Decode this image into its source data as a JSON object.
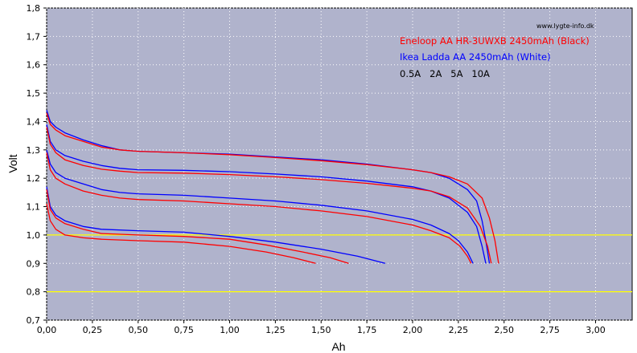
{
  "chart_data": {
    "type": "line",
    "watermark": "www.lygte-info.dk",
    "xlabel": "Ah",
    "ylabel": "Volt",
    "xlim": [
      0,
      3.2
    ],
    "ylim": [
      0.7,
      1.8
    ],
    "x_ticks": [
      "0,00",
      "0,25",
      "0,50",
      "0,75",
      "1,00",
      "1,25",
      "1,50",
      "1,75",
      "2,00",
      "2,25",
      "2,50",
      "2,75",
      "3,00"
    ],
    "y_ticks": [
      "0,7",
      "0,8",
      "0,9",
      "1,0",
      "1,1",
      "1,2",
      "1,3",
      "1,4",
      "1,5",
      "1,6",
      "1,7",
      "1,8"
    ],
    "reference_lines": [
      1.0,
      0.8
    ],
    "colors": {
      "background": "#b0b3cc",
      "grid": "#ffffff",
      "reference": "#ffff00",
      "eneloop": "#ff0000",
      "ikea": "#0000ff",
      "currents_text": "#000000"
    },
    "legend": {
      "placement": "top-right",
      "entries": [
        {
          "text": "Eneloop AA HR-3UWXB 2450mAh (Black)",
          "color": "#ff0000"
        },
        {
          "text": "Ikea Ladda AA 2450mAh (White)",
          "color": "#0000ff"
        },
        {
          "text": "0.5A   2A   5A   10A",
          "color": "#000000"
        }
      ]
    },
    "series": [
      {
        "brand": "Ikea Ladda",
        "color": "#0000ff",
        "current": "0.5A",
        "points": [
          [
            0,
            1.44
          ],
          [
            0.02,
            1.4
          ],
          [
            0.05,
            1.38
          ],
          [
            0.1,
            1.36
          ],
          [
            0.2,
            1.335
          ],
          [
            0.3,
            1.315
          ],
          [
            0.4,
            1.3
          ],
          [
            0.5,
            1.295
          ],
          [
            0.75,
            1.29
          ],
          [
            1.0,
            1.285
          ],
          [
            1.25,
            1.275
          ],
          [
            1.5,
            1.265
          ],
          [
            1.75,
            1.25
          ],
          [
            2.0,
            1.23
          ],
          [
            2.1,
            1.22
          ],
          [
            2.2,
            1.2
          ],
          [
            2.3,
            1.16
          ],
          [
            2.35,
            1.12
          ],
          [
            2.38,
            1.05
          ],
          [
            2.4,
            0.98
          ],
          [
            2.42,
            0.9
          ]
        ]
      },
      {
        "brand": "Eneloop",
        "color": "#ff0000",
        "current": "0.5A",
        "points": [
          [
            0,
            1.43
          ],
          [
            0.02,
            1.39
          ],
          [
            0.05,
            1.37
          ],
          [
            0.1,
            1.35
          ],
          [
            0.2,
            1.33
          ],
          [
            0.3,
            1.31
          ],
          [
            0.4,
            1.3
          ],
          [
            0.5,
            1.295
          ],
          [
            0.75,
            1.29
          ],
          [
            1.0,
            1.283
          ],
          [
            1.25,
            1.273
          ],
          [
            1.5,
            1.262
          ],
          [
            1.75,
            1.248
          ],
          [
            2.0,
            1.23
          ],
          [
            2.1,
            1.22
          ],
          [
            2.2,
            1.205
          ],
          [
            2.3,
            1.18
          ],
          [
            2.38,
            1.13
          ],
          [
            2.42,
            1.06
          ],
          [
            2.45,
            0.98
          ],
          [
            2.47,
            0.9
          ]
        ]
      },
      {
        "brand": "Ikea Ladda",
        "color": "#0000ff",
        "current": "2A",
        "points": [
          [
            0,
            1.39
          ],
          [
            0.02,
            1.33
          ],
          [
            0.05,
            1.3
          ],
          [
            0.1,
            1.28
          ],
          [
            0.2,
            1.26
          ],
          [
            0.3,
            1.245
          ],
          [
            0.4,
            1.235
          ],
          [
            0.5,
            1.23
          ],
          [
            0.75,
            1.228
          ],
          [
            1.0,
            1.223
          ],
          [
            1.25,
            1.215
          ],
          [
            1.5,
            1.205
          ],
          [
            1.75,
            1.19
          ],
          [
            2.0,
            1.17
          ],
          [
            2.1,
            1.155
          ],
          [
            2.2,
            1.13
          ],
          [
            2.3,
            1.08
          ],
          [
            2.35,
            1.03
          ],
          [
            2.38,
            0.96
          ],
          [
            2.4,
            0.9
          ]
        ]
      },
      {
        "brand": "Eneloop",
        "color": "#ff0000",
        "current": "2A",
        "points": [
          [
            0,
            1.38
          ],
          [
            0.02,
            1.32
          ],
          [
            0.05,
            1.29
          ],
          [
            0.1,
            1.265
          ],
          [
            0.2,
            1.245
          ],
          [
            0.3,
            1.232
          ],
          [
            0.4,
            1.225
          ],
          [
            0.5,
            1.22
          ],
          [
            0.75,
            1.218
          ],
          [
            1.0,
            1.213
          ],
          [
            1.25,
            1.205
          ],
          [
            1.5,
            1.195
          ],
          [
            1.75,
            1.182
          ],
          [
            2.0,
            1.165
          ],
          [
            2.1,
            1.155
          ],
          [
            2.2,
            1.135
          ],
          [
            2.3,
            1.095
          ],
          [
            2.37,
            1.03
          ],
          [
            2.41,
            0.96
          ],
          [
            2.43,
            0.9
          ]
        ]
      },
      {
        "brand": "Ikea Ladda",
        "color": "#0000ff",
        "current": "5A",
        "points": [
          [
            0,
            1.3
          ],
          [
            0.02,
            1.25
          ],
          [
            0.05,
            1.22
          ],
          [
            0.1,
            1.2
          ],
          [
            0.2,
            1.18
          ],
          [
            0.3,
            1.16
          ],
          [
            0.4,
            1.15
          ],
          [
            0.5,
            1.145
          ],
          [
            0.75,
            1.14
          ],
          [
            1.0,
            1.13
          ],
          [
            1.25,
            1.12
          ],
          [
            1.5,
            1.105
          ],
          [
            1.75,
            1.085
          ],
          [
            2.0,
            1.055
          ],
          [
            2.1,
            1.035
          ],
          [
            2.2,
            1.005
          ],
          [
            2.25,
            0.98
          ],
          [
            2.3,
            0.94
          ],
          [
            2.33,
            0.9
          ]
        ]
      },
      {
        "brand": "Eneloop",
        "color": "#ff0000",
        "current": "5A",
        "points": [
          [
            0,
            1.29
          ],
          [
            0.02,
            1.23
          ],
          [
            0.05,
            1.2
          ],
          [
            0.1,
            1.18
          ],
          [
            0.2,
            1.155
          ],
          [
            0.3,
            1.14
          ],
          [
            0.4,
            1.13
          ],
          [
            0.5,
            1.125
          ],
          [
            0.75,
            1.12
          ],
          [
            1.0,
            1.11
          ],
          [
            1.25,
            1.1
          ],
          [
            1.5,
            1.085
          ],
          [
            1.75,
            1.065
          ],
          [
            2.0,
            1.035
          ],
          [
            2.1,
            1.015
          ],
          [
            2.2,
            0.99
          ],
          [
            2.26,
            0.96
          ],
          [
            2.3,
            0.925
          ],
          [
            2.32,
            0.9
          ]
        ]
      },
      {
        "brand": "Ikea Ladda",
        "color": "#0000ff",
        "current": "10A",
        "points": [
          [
            0,
            1.17
          ],
          [
            0.02,
            1.1
          ],
          [
            0.05,
            1.07
          ],
          [
            0.1,
            1.05
          ],
          [
            0.2,
            1.03
          ],
          [
            0.3,
            1.02
          ],
          [
            0.5,
            1.015
          ],
          [
            0.75,
            1.01
          ],
          [
            1.0,
            0.995
          ],
          [
            1.25,
            0.975
          ],
          [
            1.5,
            0.95
          ],
          [
            1.7,
            0.925
          ],
          [
            1.85,
            0.9
          ]
        ]
      },
      {
        "brand": "Eneloop",
        "color": "#ff0000",
        "current": "10A",
        "points": [
          [
            0,
            1.16
          ],
          [
            0.02,
            1.09
          ],
          [
            0.05,
            1.06
          ],
          [
            0.1,
            1.04
          ],
          [
            0.2,
            1.02
          ],
          [
            0.3,
            1.005
          ],
          [
            0.5,
            1.0
          ],
          [
            0.75,
            0.995
          ],
          [
            1.0,
            0.985
          ],
          [
            1.2,
            0.965
          ],
          [
            1.4,
            0.94
          ],
          [
            1.55,
            0.92
          ],
          [
            1.65,
            0.9
          ]
        ]
      },
      {
        "brand": "Eneloop",
        "color": "#ff0000",
        "current": "10A",
        "points": [
          [
            0,
            1.11
          ],
          [
            0.02,
            1.05
          ],
          [
            0.05,
            1.02
          ],
          [
            0.1,
            1.0
          ],
          [
            0.2,
            0.99
          ],
          [
            0.3,
            0.985
          ],
          [
            0.5,
            0.98
          ],
          [
            0.75,
            0.975
          ],
          [
            1.0,
            0.96
          ],
          [
            1.2,
            0.94
          ],
          [
            1.35,
            0.92
          ],
          [
            1.47,
            0.9
          ]
        ]
      }
    ]
  }
}
